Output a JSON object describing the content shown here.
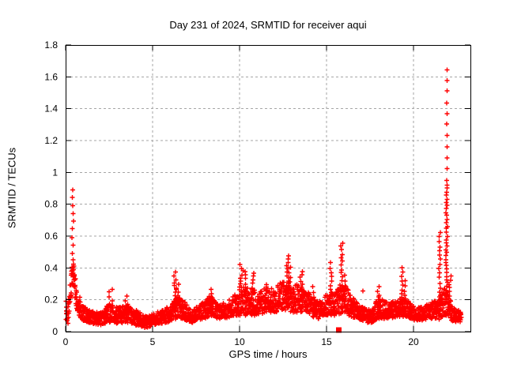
{
  "page": {
    "background_color": "#ffffff",
    "text_color": "#000000"
  },
  "chart_data": {
    "type": "scatter",
    "title": "Day 231 of 2024, SRMTID for receiver aqui",
    "xlabel": "GPS time / hours",
    "ylabel": "SRMTID / TECUs",
    "xlim": [
      0,
      23.27
    ],
    "ylim": [
      0,
      1.8
    ],
    "xticks": [
      {
        "v": 0,
        "label": "0"
      },
      {
        "v": 5,
        "label": "5"
      },
      {
        "v": 10,
        "label": "10"
      },
      {
        "v": 15,
        "label": "15"
      },
      {
        "v": 20,
        "label": "20"
      }
    ],
    "yticks": [
      {
        "v": 0,
        "label": "0"
      },
      {
        "v": 0.2,
        "label": "0.2"
      },
      {
        "v": 0.4,
        "label": "0.4"
      },
      {
        "v": 0.6,
        "label": "0.6"
      },
      {
        "v": 0.8,
        "label": "0.8"
      },
      {
        "v": 1,
        "label": "1"
      },
      {
        "v": 1.2,
        "label": "1.2"
      },
      {
        "v": 1.4,
        "label": "1.4"
      },
      {
        "v": 1.6,
        "label": "1.6"
      },
      {
        "v": 1.8,
        "label": "1.8"
      }
    ],
    "grid": {
      "on": true,
      "color": "#a6a6a6",
      "dash": "3 3"
    },
    "legend": "none",
    "axis_color": "#000000",
    "series": [
      {
        "name": "SRMTID",
        "marker": "plus",
        "color": "#ff0000",
        "seed": 231,
        "points_per_hour": 100,
        "x_range": [
          0.02,
          22.75
        ],
        "envelope": [
          [
            0.0,
            0.05,
            0.25
          ],
          [
            0.15,
            0.05,
            0.18
          ],
          [
            0.3,
            0.2,
            0.4
          ],
          [
            0.45,
            0.28,
            0.45
          ],
          [
            0.6,
            0.15,
            0.32
          ],
          [
            0.8,
            0.1,
            0.22
          ],
          [
            1.0,
            0.07,
            0.16
          ],
          [
            1.5,
            0.05,
            0.13
          ],
          [
            2.0,
            0.04,
            0.12
          ],
          [
            2.5,
            0.06,
            0.18
          ],
          [
            3.0,
            0.05,
            0.15
          ],
          [
            3.5,
            0.06,
            0.17
          ],
          [
            4.0,
            0.04,
            0.14
          ],
          [
            4.7,
            0.02,
            0.09
          ],
          [
            5.0,
            0.04,
            0.12
          ],
          [
            5.5,
            0.05,
            0.14
          ],
          [
            6.0,
            0.06,
            0.16
          ],
          [
            6.4,
            0.08,
            0.22
          ],
          [
            6.8,
            0.08,
            0.2
          ],
          [
            7.2,
            0.05,
            0.13
          ],
          [
            7.6,
            0.07,
            0.16
          ],
          [
            8.0,
            0.08,
            0.2
          ],
          [
            8.4,
            0.1,
            0.22
          ],
          [
            8.8,
            0.08,
            0.18
          ],
          [
            9.2,
            0.08,
            0.18
          ],
          [
            9.6,
            0.1,
            0.22
          ],
          [
            10.0,
            0.1,
            0.28
          ],
          [
            10.5,
            0.1,
            0.28
          ],
          [
            11.0,
            0.1,
            0.26
          ],
          [
            11.5,
            0.12,
            0.28
          ],
          [
            12.0,
            0.12,
            0.28
          ],
          [
            12.5,
            0.14,
            0.32
          ],
          [
            13.0,
            0.12,
            0.3
          ],
          [
            13.5,
            0.12,
            0.3
          ],
          [
            14.0,
            0.1,
            0.24
          ],
          [
            14.5,
            0.08,
            0.2
          ],
          [
            15.0,
            0.1,
            0.24
          ],
          [
            15.5,
            0.1,
            0.26
          ],
          [
            16.0,
            0.12,
            0.3
          ],
          [
            16.3,
            0.1,
            0.26
          ],
          [
            16.7,
            0.08,
            0.2
          ],
          [
            17.0,
            0.07,
            0.16
          ],
          [
            17.5,
            0.05,
            0.14
          ],
          [
            18.0,
            0.08,
            0.22
          ],
          [
            18.5,
            0.08,
            0.18
          ],
          [
            19.0,
            0.09,
            0.2
          ],
          [
            19.5,
            0.1,
            0.22
          ],
          [
            20.0,
            0.07,
            0.16
          ],
          [
            20.5,
            0.07,
            0.16
          ],
          [
            21.0,
            0.08,
            0.18
          ],
          [
            21.4,
            0.08,
            0.2
          ],
          [
            21.8,
            0.1,
            0.3
          ],
          [
            22.0,
            0.1,
            0.25
          ],
          [
            22.25,
            0.06,
            0.15
          ],
          [
            22.75,
            0.06,
            0.13
          ]
        ],
        "spikes": [
          [
            0.42,
            0.3,
            0.89,
            13,
            0.05
          ],
          [
            2.6,
            0.15,
            0.27,
            6,
            0.1
          ],
          [
            3.5,
            0.12,
            0.22,
            5,
            0.1
          ],
          [
            6.3,
            0.15,
            0.37,
            12,
            0.08
          ],
          [
            6.45,
            0.12,
            0.3,
            8,
            0.08
          ],
          [
            8.3,
            0.12,
            0.26,
            8,
            0.08
          ],
          [
            10.1,
            0.15,
            0.42,
            14,
            0.1
          ],
          [
            10.35,
            0.15,
            0.38,
            10,
            0.08
          ],
          [
            10.75,
            0.12,
            0.37,
            12,
            0.08
          ],
          [
            11.5,
            0.15,
            0.3,
            8,
            0.08
          ],
          [
            12.75,
            0.18,
            0.47,
            16,
            0.1
          ],
          [
            12.9,
            0.15,
            0.4,
            10,
            0.08
          ],
          [
            13.55,
            0.15,
            0.38,
            12,
            0.08
          ],
          [
            14.2,
            0.1,
            0.28,
            6,
            0.08
          ],
          [
            15.25,
            0.12,
            0.43,
            12,
            0.06
          ],
          [
            15.85,
            0.15,
            0.56,
            18,
            0.08
          ],
          [
            16.05,
            0.12,
            0.35,
            8,
            0.06
          ],
          [
            17.1,
            0.25,
            0.25,
            1,
            0.0
          ],
          [
            18.0,
            0.1,
            0.28,
            8,
            0.08
          ],
          [
            19.35,
            0.1,
            0.4,
            12,
            0.06
          ],
          [
            19.5,
            0.1,
            0.32,
            8,
            0.06
          ],
          [
            21.5,
            0.08,
            0.62,
            20,
            0.04
          ],
          [
            21.9,
            0.22,
            0.92,
            34,
            0.05
          ],
          [
            21.92,
            0.95,
            1.65,
            11,
            0.02
          ],
          [
            22.1,
            0.12,
            0.35,
            10,
            0.05
          ]
        ]
      },
      {
        "name": "flagged-point",
        "marker": "filled-square",
        "color": "#ff0000",
        "points": [
          [
            15.7,
            0.01
          ]
        ]
      }
    ],
    "notable_points": {
      "max_spike": {
        "x": 21.9,
        "y": 1.65
      },
      "early_spike": {
        "x": 0.42,
        "y": 0.89
      },
      "square_marker": {
        "x": 15.7,
        "y": 0.01
      }
    }
  }
}
